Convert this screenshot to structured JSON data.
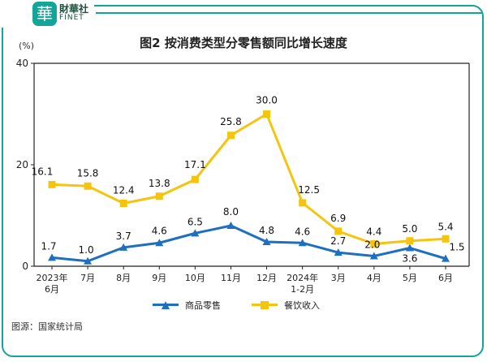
{
  "brand": {
    "seal_char": "華",
    "name_cn": "財華社",
    "name_en": "FINET"
  },
  "chart_title": "图2  按消费类型分零售额同比增长速度",
  "unit_label": "(%)",
  "source": "图源：国家统计局",
  "colors": {
    "frame": "#13a49a",
    "series_goods": "#1f6fc0",
    "series_catering": "#f5c40f",
    "axis": "#222222"
  },
  "chart_data": {
    "type": "line",
    "categories": [
      [
        "2023年",
        "6月"
      ],
      [
        "7月"
      ],
      [
        "8月"
      ],
      [
        "9月"
      ],
      [
        "10月"
      ],
      [
        "11月"
      ],
      [
        "12月"
      ],
      [
        "2024年",
        "1-2月"
      ],
      [
        "3月"
      ],
      [
        "4月"
      ],
      [
        "5月"
      ],
      [
        "6月"
      ]
    ],
    "ylim": [
      0,
      40
    ],
    "yticks": [
      0,
      20,
      40
    ],
    "xlabel": "",
    "ylabel": "(%)",
    "grid": false,
    "legend_position": "bottom",
    "series": [
      {
        "name": "商品零售",
        "color": "#1f6fc0",
        "marker": "triangle",
        "values": [
          1.7,
          1.0,
          3.7,
          4.6,
          6.5,
          8.0,
          4.8,
          4.6,
          2.7,
          2.0,
          3.6,
          1.5
        ],
        "labels": [
          "1.7",
          "1.0",
          "3.7",
          "4.6",
          "6.5",
          "8.0",
          "4.8",
          "4.6",
          "2.7",
          "2.0",
          "3.6",
          "1.5"
        ]
      },
      {
        "name": "餐饮收入",
        "color": "#f5c40f",
        "marker": "square",
        "values": [
          16.1,
          15.8,
          12.4,
          13.8,
          17.1,
          25.8,
          30.0,
          12.5,
          6.9,
          4.4,
          5.0,
          5.4
        ],
        "labels": [
          "16.1",
          "15.8",
          "12.4",
          "13.8",
          "17.1",
          "25.8",
          "30.0",
          "12.5",
          "6.9",
          "4.4",
          "5.0",
          "5.4"
        ]
      }
    ]
  }
}
